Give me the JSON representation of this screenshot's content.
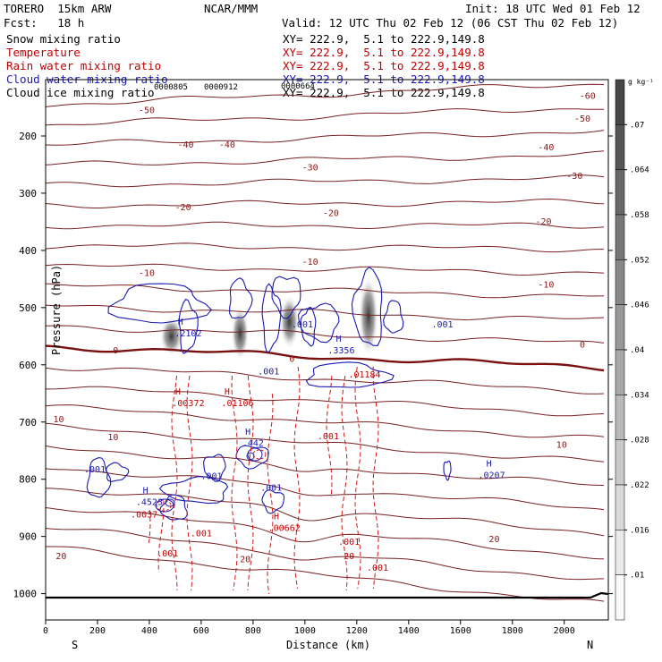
{
  "header": {
    "model": "TORERO  15km ARW",
    "org": "NCAR/MMM",
    "init": "Init: 18 UTC Wed 01 Feb 12",
    "fcst": "Fcst:   18 h",
    "valid": "Valid: 12 UTC Thu 02 Feb 12 (06 CST Thu 02 Feb 12)"
  },
  "fields": [
    {
      "name": "Snow mixing ratio",
      "xy": "XY= 222.9,  5.1 to 222.9,149.8",
      "color": "#000000"
    },
    {
      "name": "Temperature",
      "xy": "XY= 222.9,  5.1 to 222.9,149.8",
      "color": "#c00000"
    },
    {
      "name": "Rain water mixing ratio",
      "xy": "XY= 222.9,  5.1 to 222.9,149.8",
      "color": "#c00000"
    },
    {
      "name": "Cloud water mixing ratio",
      "xy": "XY= 222.9,  5.1 to 222.9,149.8",
      "color": "#1a1ab5"
    },
    {
      "name": "Cloud ice mixing ratio",
      "xy": "XY= 222.9,  5.1 to 222.9,149.8",
      "color": "#000000"
    }
  ],
  "chart_data": {
    "type": "cross-section contour",
    "xlabel": "Distance (km)",
    "ylabel": "Pressure (hPa)",
    "x_ticks": [
      0,
      200,
      400,
      600,
      800,
      1000,
      1200,
      1400,
      1600,
      1800,
      2000
    ],
    "y_ticks": [
      200,
      300,
      400,
      500,
      600,
      700,
      800,
      900,
      1000
    ],
    "xlim": [
      0,
      2170
    ],
    "ylim": [
      1050,
      100
    ],
    "left_end": "S",
    "right_end": "N",
    "colorbar": {
      "unit": "g kg⁻¹",
      "levels": [
        ".01",
        ".016",
        ".022",
        ".028",
        ".034",
        ".04",
        ".046",
        ".052",
        ".058",
        ".064",
        ".07"
      ]
    },
    "top_labels": [
      "0000805",
      "0000912",
      "0000664"
    ],
    "temperature_labels": [
      {
        "t": "-60",
        "x": 2090,
        "p": 135
      },
      {
        "t": "-50",
        "x": 390,
        "p": 160
      },
      {
        "t": "-50",
        "x": 2070,
        "p": 175
      },
      {
        "t": "-40",
        "x": 540,
        "p": 220
      },
      {
        "t": "-40",
        "x": 700,
        "p": 220
      },
      {
        "t": "-40",
        "x": 1930,
        "p": 225
      },
      {
        "t": "-30",
        "x": 1020,
        "p": 260
      },
      {
        "t": "-30",
        "x": 2040,
        "p": 275
      },
      {
        "t": "-20",
        "x": 530,
        "p": 330
      },
      {
        "t": "-20",
        "x": 1100,
        "p": 340
      },
      {
        "t": "-20",
        "x": 1920,
        "p": 355
      },
      {
        "t": "-10",
        "x": 390,
        "p": 445
      },
      {
        "t": "-10",
        "x": 1020,
        "p": 425
      },
      {
        "t": "-10",
        "x": 1930,
        "p": 465
      },
      {
        "t": "0",
        "x": 270,
        "p": 580
      },
      {
        "t": "0",
        "x": 950,
        "p": 595
      },
      {
        "t": "0",
        "x": 2070,
        "p": 570
      },
      {
        "t": "10",
        "x": 50,
        "p": 700
      },
      {
        "t": "10",
        "x": 260,
        "p": 732
      },
      {
        "t": "10",
        "x": 1990,
        "p": 745
      },
      {
        "t": "20",
        "x": 60,
        "p": 940
      },
      {
        "t": "20",
        "x": 770,
        "p": 945
      },
      {
        "t": "20",
        "x": 1730,
        "p": 910
      }
    ],
    "cloud_water_labels": [
      {
        "t": "H",
        "x": 520,
        "p": 530
      },
      {
        "t": ".2102",
        "x": 550,
        "p": 550
      },
      {
        "t": ".001",
        "x": 990,
        "p": 535
      },
      {
        "t": ".001",
        "x": 1530,
        "p": 535
      },
      {
        "t": "H",
        "x": 1130,
        "p": 560
      },
      {
        "t": ".3356",
        "x": 1140,
        "p": 580
      },
      {
        "t": ".001",
        "x": 860,
        "p": 617
      },
      {
        "t": ".001",
        "x": 190,
        "p": 788
      },
      {
        "t": ".001",
        "x": 640,
        "p": 800
      },
      {
        "t": "H",
        "x": 780,
        "p": 722
      },
      {
        "t": ".442",
        "x": 800,
        "p": 742
      },
      {
        "t": "H",
        "x": 1710,
        "p": 778
      },
      {
        "t": ".0207",
        "x": 1720,
        "p": 798
      },
      {
        "t": "H",
        "x": 385,
        "p": 825
      },
      {
        "t": ".4523",
        "x": 400,
        "p": 845
      },
      {
        "t": ".001",
        "x": 870,
        "p": 820
      }
    ],
    "rain_labels": [
      {
        "t": "H",
        "x": 510,
        "p": 652
      },
      {
        "t": ".00372",
        "x": 550,
        "p": 672
      },
      {
        "t": "H",
        "x": 700,
        "p": 652
      },
      {
        "t": ".01106",
        "x": 740,
        "p": 672
      },
      {
        "t": ".01184",
        "x": 1230,
        "p": 622
      },
      {
        "t": ".001",
        "x": 1090,
        "p": 730
      },
      {
        "t": "H",
        "x": 890,
        "p": 870
      },
      {
        "t": ".00662",
        "x": 920,
        "p": 890
      },
      {
        "t": ".0037",
        "x": 380,
        "p": 867
      },
      {
        "t": ".001",
        "x": 600,
        "p": 900
      },
      {
        "t": ".001",
        "x": 470,
        "p": 935
      },
      {
        "t": ".001",
        "x": 1170,
        "p": 915
      },
      {
        "t": "20",
        "x": 1170,
        "p": 940
      },
      {
        "t": ".001",
        "x": 1280,
        "p": 960
      }
    ],
    "snow_cores": [
      {
        "x": 485,
        "p": 550,
        "rx": 13,
        "ry": 22
      },
      {
        "x": 750,
        "p": 545,
        "rx": 10,
        "ry": 30
      },
      {
        "x": 940,
        "p": 525,
        "rx": 11,
        "ry": 30
      },
      {
        "x": 1245,
        "p": 515,
        "rx": 11,
        "ry": 45
      }
    ]
  }
}
